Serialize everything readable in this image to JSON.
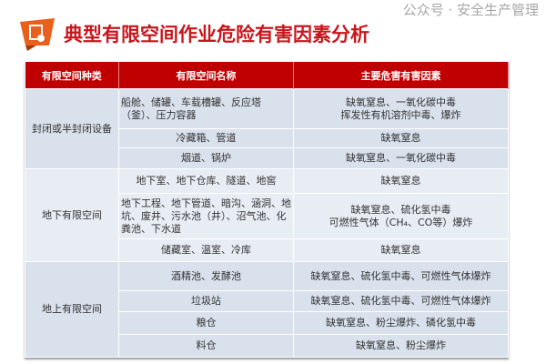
{
  "title": "典型有限空间作业危险有害因素分析",
  "headers": [
    "有限空间种类",
    "有限空间名称",
    "主要危害有害因素"
  ],
  "groups": [
    {
      "category": "封闭或半封闭设备",
      "rows": [
        {
          "name": "船舱、储罐、车载槽罐、反应塔（釜）、压力容器",
          "hazard": "缺氧窒息、一氧化碳中毒\n挥发性有机溶剂中毒、爆炸"
        },
        {
          "name": "冷藏箱、管道",
          "hazard": "缺氧窒息"
        },
        {
          "name": "烟道、锅炉",
          "hazard": "缺氧窒息、一氧化碳中毒"
        }
      ]
    },
    {
      "category": "地下有限空间",
      "rows": [
        {
          "name": "地下室、地下仓库、隧道、地窖",
          "hazard": "缺氧窒息"
        },
        {
          "name": "地下工程、地下管道、暗沟、涵洞、地坑、废井、污水池（井）、沼气池、化粪池、下水道",
          "hazard": "缺氧窒息、硫化氢中毒\n可燃性气体（CH₄、CO等）爆炸"
        },
        {
          "name": "储藏室、温室、冷库",
          "hazard": "缺氧窒息"
        }
      ]
    },
    {
      "category": "地上有限空间",
      "rows": [
        {
          "name": "酒精池、发酵池",
          "hazard": "缺氧窒息、硫化氢中毒、可燃性气体爆炸"
        },
        {
          "name": "垃圾站",
          "hazard": "缺氧窒息、硫化氢中毒、可燃性气体爆炸"
        },
        {
          "name": "粮仓",
          "hazard": "缺氧窒息、粉尘爆炸、磷化氢中毒"
        },
        {
          "name": "料仓",
          "hazard": "缺氧窒息、粉尘爆炸"
        }
      ]
    }
  ],
  "watermark": "公众号 · 安全生产管理",
  "colors": {
    "header": "#c00000",
    "title": "#c8161d",
    "logo": "#e8601c"
  }
}
